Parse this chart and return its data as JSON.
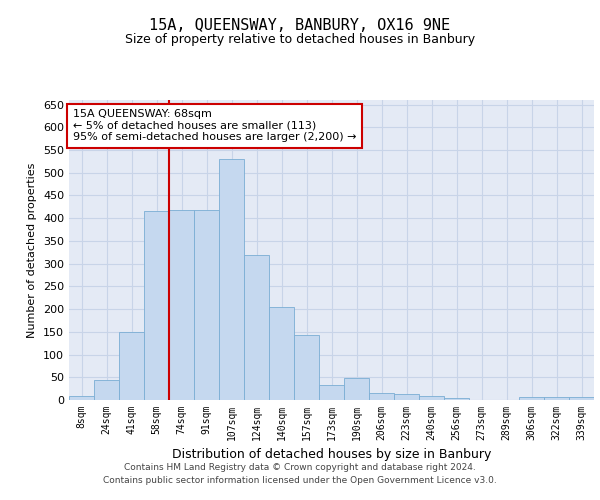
{
  "title": "15A, QUEENSWAY, BANBURY, OX16 9NE",
  "subtitle": "Size of property relative to detached houses in Banbury",
  "xlabel": "Distribution of detached houses by size in Banbury",
  "ylabel": "Number of detached properties",
  "categories": [
    "8sqm",
    "24sqm",
    "41sqm",
    "58sqm",
    "74sqm",
    "91sqm",
    "107sqm",
    "124sqm",
    "140sqm",
    "157sqm",
    "173sqm",
    "190sqm",
    "206sqm",
    "223sqm",
    "240sqm",
    "256sqm",
    "273sqm",
    "289sqm",
    "306sqm",
    "322sqm",
    "339sqm"
  ],
  "values": [
    8,
    45,
    150,
    415,
    418,
    418,
    530,
    318,
    205,
    143,
    33,
    48,
    15,
    14,
    9,
    4,
    1,
    1,
    6,
    6,
    6
  ],
  "bar_color": "#c5d8ef",
  "bar_edge_color": "#7aadd4",
  "red_line_x": 3.5,
  "annotation_text": "15A QUEENSWAY: 68sqm\n← 5% of detached houses are smaller (113)\n95% of semi-detached houses are larger (2,200) →",
  "annotation_box_color": "#ffffff",
  "annotation_box_edge": "#cc0000",
  "footer1": "Contains HM Land Registry data © Crown copyright and database right 2024.",
  "footer2": "Contains public sector information licensed under the Open Government Licence v3.0.",
  "ylim": [
    0,
    660
  ],
  "yticks": [
    0,
    50,
    100,
    150,
    200,
    250,
    300,
    350,
    400,
    450,
    500,
    550,
    600,
    650
  ],
  "grid_color": "#c8d4e8",
  "background_color": "#e4eaf5",
  "fig_bg": "#ffffff"
}
